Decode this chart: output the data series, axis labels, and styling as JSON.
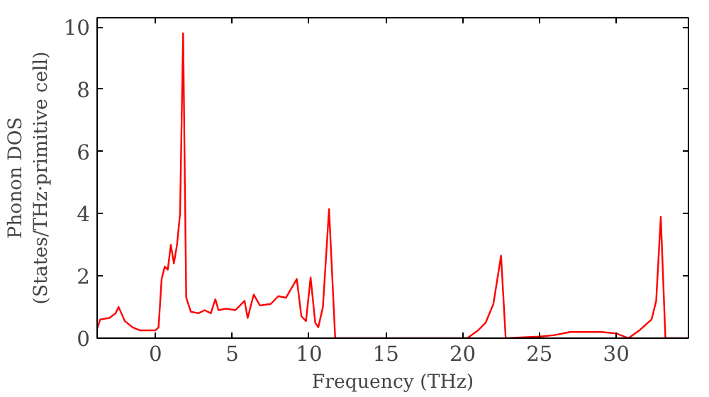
{
  "chart_data": {
    "type": "line",
    "xlabel": "Frequency (THz)",
    "ylabel": "Phonon DOS\n(States/THz·primitive cell)",
    "xlim": [
      -3.8,
      34.7
    ],
    "ylim": [
      0,
      10.3
    ],
    "xticks": [
      0,
      5,
      10,
      15,
      20,
      25,
      30
    ],
    "yticks": [
      0,
      2,
      4,
      6,
      8,
      10
    ],
    "grid": false,
    "line_style": "solid",
    "series": [
      {
        "color": "#ff0000",
        "x": [
          -3.8,
          -3.6,
          -3,
          -2.6,
          -2.4,
          -2,
          -1.5,
          -1,
          0,
          0.2,
          0.4,
          0.6,
          0.8,
          1.0,
          1.2,
          1.4,
          1.6,
          1.8,
          2.0,
          2.3,
          2.8,
          3.2,
          3.6,
          3.9,
          4.1,
          4.6,
          5.2,
          5.8,
          6.0,
          6.4,
          6.8,
          7.5,
          8.0,
          8.5,
          9.2,
          9.5,
          9.8,
          10.1,
          10.4,
          10.6,
          10.9,
          11.3,
          11.7,
          20.3,
          21,
          21.5,
          22,
          22.5,
          22.8,
          25,
          26,
          27,
          29,
          30,
          30.8,
          31.5,
          32.3,
          32.6,
          32.9,
          33.2,
          34.7
        ],
        "values": [
          0.3,
          0.6,
          0.65,
          0.8,
          1.0,
          0.55,
          0.35,
          0.25,
          0.25,
          0.35,
          1.9,
          2.3,
          2.2,
          3.0,
          2.4,
          3.0,
          4.0,
          9.8,
          1.3,
          0.85,
          0.8,
          0.9,
          0.8,
          1.25,
          0.9,
          0.95,
          0.9,
          1.2,
          0.65,
          1.4,
          1.05,
          1.1,
          1.35,
          1.3,
          1.9,
          0.7,
          0.55,
          1.95,
          0.5,
          0.35,
          1.0,
          4.15,
          0.0,
          0.0,
          0.25,
          0.5,
          1.1,
          2.65,
          0.0,
          0.05,
          0.1,
          0.2,
          0.2,
          0.15,
          0.0,
          0.25,
          0.6,
          1.2,
          3.9,
          0.0,
          0.0
        ]
      }
    ]
  }
}
